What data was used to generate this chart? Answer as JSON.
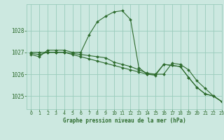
{
  "title": "Graphe pression niveau de la mer (hPa)",
  "background_color": "#cce8e0",
  "grid_color": "#99ccbb",
  "line_color": "#2d6b2d",
  "xlim": [
    -0.5,
    23
  ],
  "ylim": [
    1024.4,
    1029.2
  ],
  "yticks": [
    1025,
    1026,
    1027,
    1028
  ],
  "xticks": [
    0,
    1,
    2,
    3,
    4,
    5,
    6,
    7,
    8,
    9,
    10,
    11,
    12,
    13,
    14,
    15,
    16,
    17,
    18,
    19,
    20,
    21,
    22,
    23
  ],
  "series": [
    {
      "x": [
        0,
        1,
        2,
        3,
        4,
        5,
        6,
        7,
        8,
        9,
        10,
        11,
        12,
        13,
        14,
        15,
        16,
        17,
        18,
        19,
        20,
        21,
        22,
        23
      ],
      "y": [
        1026.9,
        1026.8,
        1027.1,
        1027.1,
        1027.1,
        1027.0,
        1027.0,
        1027.8,
        1028.4,
        1028.65,
        1028.85,
        1028.9,
        1028.5,
        1026.3,
        1026.0,
        1026.0,
        1026.0,
        1026.5,
        1026.45,
        1026.2,
        1025.7,
        1025.35,
        1025.0,
        1024.75
      ]
    },
    {
      "x": [
        0,
        1,
        2,
        3,
        4,
        5,
        6,
        7,
        8,
        9,
        10,
        11,
        12,
        13,
        14,
        15,
        16,
        17,
        18,
        19,
        20,
        21,
        22,
        23
      ],
      "y": [
        1027.0,
        1027.0,
        1027.0,
        1027.0,
        1027.0,
        1026.9,
        1026.8,
        1026.7,
        1026.6,
        1026.5,
        1026.4,
        1026.3,
        1026.2,
        1026.1,
        1026.0,
        1025.95,
        1026.45,
        1026.4,
        1026.35,
        1025.85,
        1025.4,
        1025.1,
        1025.0,
        1024.75
      ]
    },
    {
      "x": [
        0,
        1,
        2,
        3,
        4,
        5,
        6,
        7,
        8,
        9,
        10,
        11,
        12,
        13,
        14,
        15,
        16,
        17,
        18,
        19,
        20,
        21,
        22,
        23
      ],
      "y": [
        1026.95,
        1026.9,
        1027.0,
        1027.0,
        1027.0,
        1026.95,
        1026.9,
        1026.85,
        1026.8,
        1026.75,
        1026.55,
        1026.45,
        1026.35,
        1026.2,
        1026.05,
        1026.0,
        1026.45,
        1026.4,
        1026.35,
        1025.85,
        1025.4,
        1025.1,
        1025.0,
        1024.75
      ]
    }
  ]
}
